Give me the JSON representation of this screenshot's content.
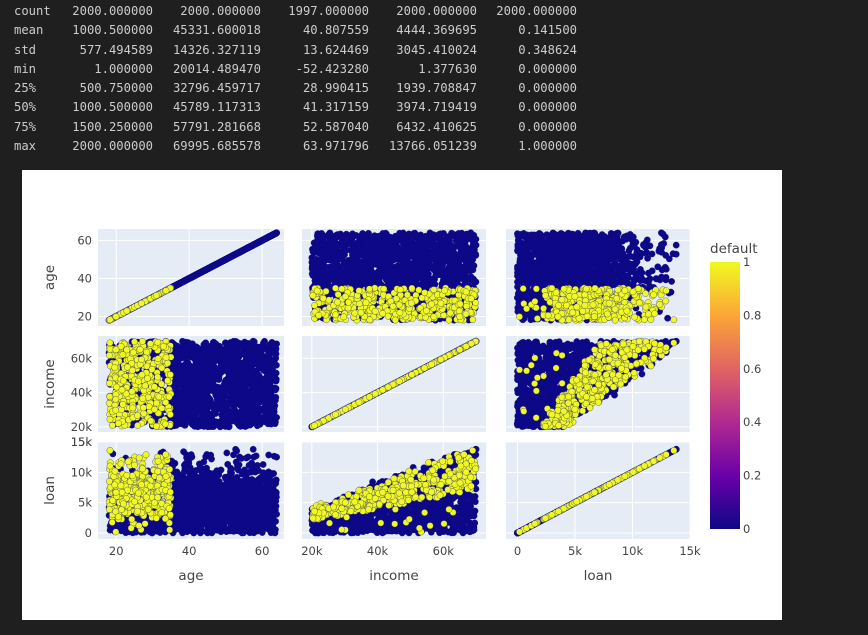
{
  "describe_table": {
    "rows": [
      {
        "label": "count",
        "values": [
          "2000.000000",
          "2000.000000",
          "1997.000000",
          "2000.000000",
          "2000.000000"
        ]
      },
      {
        "label": "mean",
        "values": [
          "1000.500000",
          "45331.600018",
          "40.807559",
          "4444.369695",
          "0.141500"
        ]
      },
      {
        "label": "std",
        "values": [
          "577.494589",
          "14326.327119",
          "13.624469",
          "3045.410024",
          "0.348624"
        ]
      },
      {
        "label": "min",
        "values": [
          "1.000000",
          "20014.489470",
          "-52.423280",
          "1.377630",
          "0.000000"
        ]
      },
      {
        "label": "25%",
        "values": [
          "500.750000",
          "32796.459717",
          "28.990415",
          "1939.708847",
          "0.000000"
        ]
      },
      {
        "label": "50%",
        "values": [
          "1000.500000",
          "45789.117313",
          "41.317159",
          "3974.719419",
          "0.000000"
        ]
      },
      {
        "label": "75%",
        "values": [
          "1500.250000",
          "57791.281668",
          "52.587040",
          "6432.410625",
          "0.000000"
        ]
      },
      {
        "label": "max",
        "values": [
          "2000.000000",
          "69995.685578",
          "63.971796",
          "13766.051239",
          "1.000000"
        ]
      }
    ]
  },
  "chart_data": {
    "type": "scatter",
    "subtype": "scatter-matrix",
    "dimensions": [
      "age",
      "income",
      "loan"
    ],
    "color_by": "default",
    "colorscale": "plasma",
    "colorscale_stops": [
      "#0d0887",
      "#6a00a8",
      "#b12a90",
      "#e16462",
      "#fca636",
      "#f0f921"
    ],
    "points_per_panel": 2000,
    "axes": {
      "age": {
        "range": [
          15,
          66
        ],
        "ticks": [
          20,
          40,
          60
        ],
        "tick_labels": [
          "20",
          "40",
          "60"
        ]
      },
      "income": {
        "range": [
          17000,
          73000
        ],
        "ticks": [
          20000,
          40000,
          60000
        ],
        "tick_labels": [
          "20k",
          "40k",
          "60k"
        ],
        "row_ticks": [
          20000,
          40000,
          60000
        ],
        "row_tick_labels": [
          "20k",
          "40k",
          "60k"
        ]
      },
      "loan": {
        "range": [
          -1000,
          15000
        ],
        "ticks": [
          0,
          5000,
          10000,
          15000
        ],
        "tick_labels": [
          "0",
          "5k",
          "10k",
          "15k"
        ]
      }
    },
    "colorbar": {
      "title": "default",
      "ticks": [
        0,
        0.2,
        0.4,
        0.6,
        0.8,
        1
      ],
      "tick_labels": [
        "0",
        "0.2",
        "0.4",
        "0.6",
        "0.8",
        "1"
      ]
    },
    "background": "#e5ecf6",
    "grid": true
  }
}
